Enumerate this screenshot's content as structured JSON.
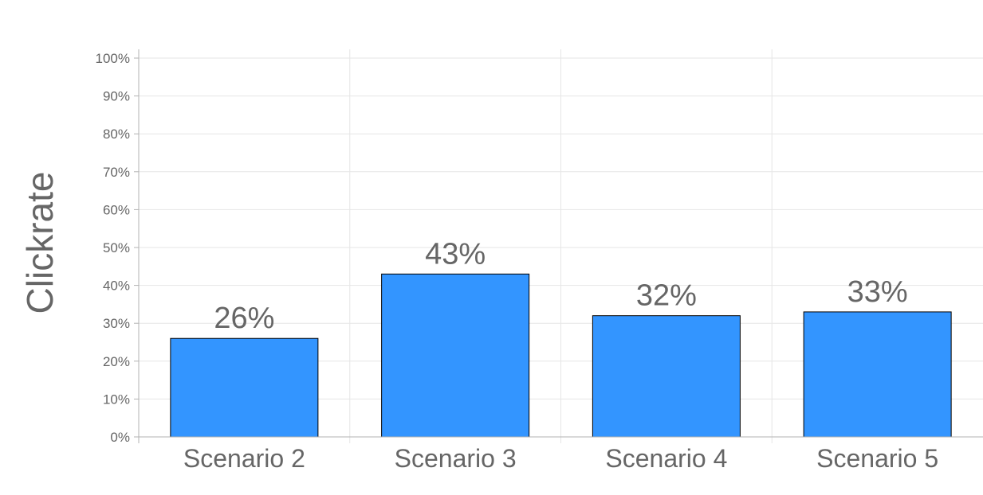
{
  "chart_data": {
    "type": "bar",
    "title": "",
    "xlabel": "",
    "ylabel": "Clickrate",
    "categories": [
      "Scenario 2",
      "Scenario 3",
      "Scenario 4",
      "Scenario 5"
    ],
    "values": [
      26,
      43,
      32,
      33
    ],
    "data_labels": [
      "26%",
      "43%",
      "32%",
      "33%"
    ],
    "ylim": [
      0,
      100
    ],
    "y_ticks": [
      0,
      10,
      20,
      30,
      40,
      50,
      60,
      70,
      80,
      90,
      100
    ],
    "y_tick_labels": [
      "0%",
      "10%",
      "20%",
      "30%",
      "40%",
      "50%",
      "60%",
      "70%",
      "80%",
      "90%",
      "100%"
    ],
    "grid": true,
    "legend": "none",
    "colors": {
      "bar": "#3395ff",
      "bar_border": "#000000",
      "text": "#666666",
      "grid": "#e6e6e6",
      "axis": "#b3b3b3"
    }
  }
}
